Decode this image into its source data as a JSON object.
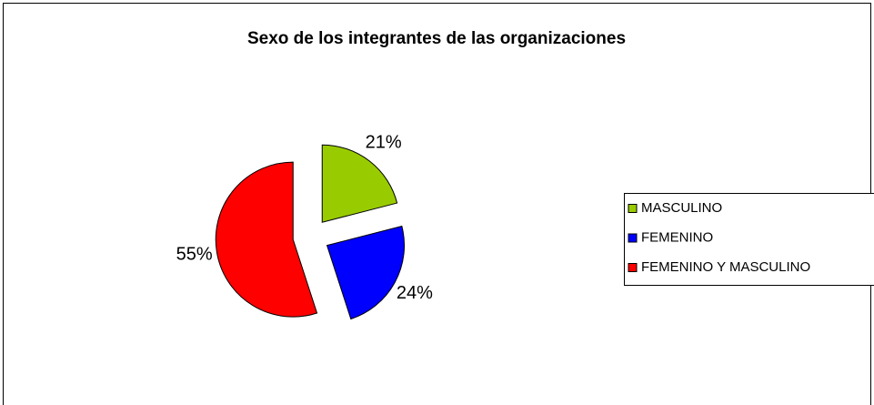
{
  "chart_data": {
    "type": "pie",
    "title": "Sexo de los integrantes de las organizaciones",
    "categories": [
      "MASCULINO",
      "FEMENINO",
      "FEMENINO Y MASCULINO"
    ],
    "values": [
      21,
      24,
      55
    ],
    "value_labels": [
      "21%",
      "24%",
      "55%"
    ],
    "colors": [
      "#99cc00",
      "#0000ff",
      "#ff0000"
    ],
    "exploded": true,
    "legend": "right"
  }
}
